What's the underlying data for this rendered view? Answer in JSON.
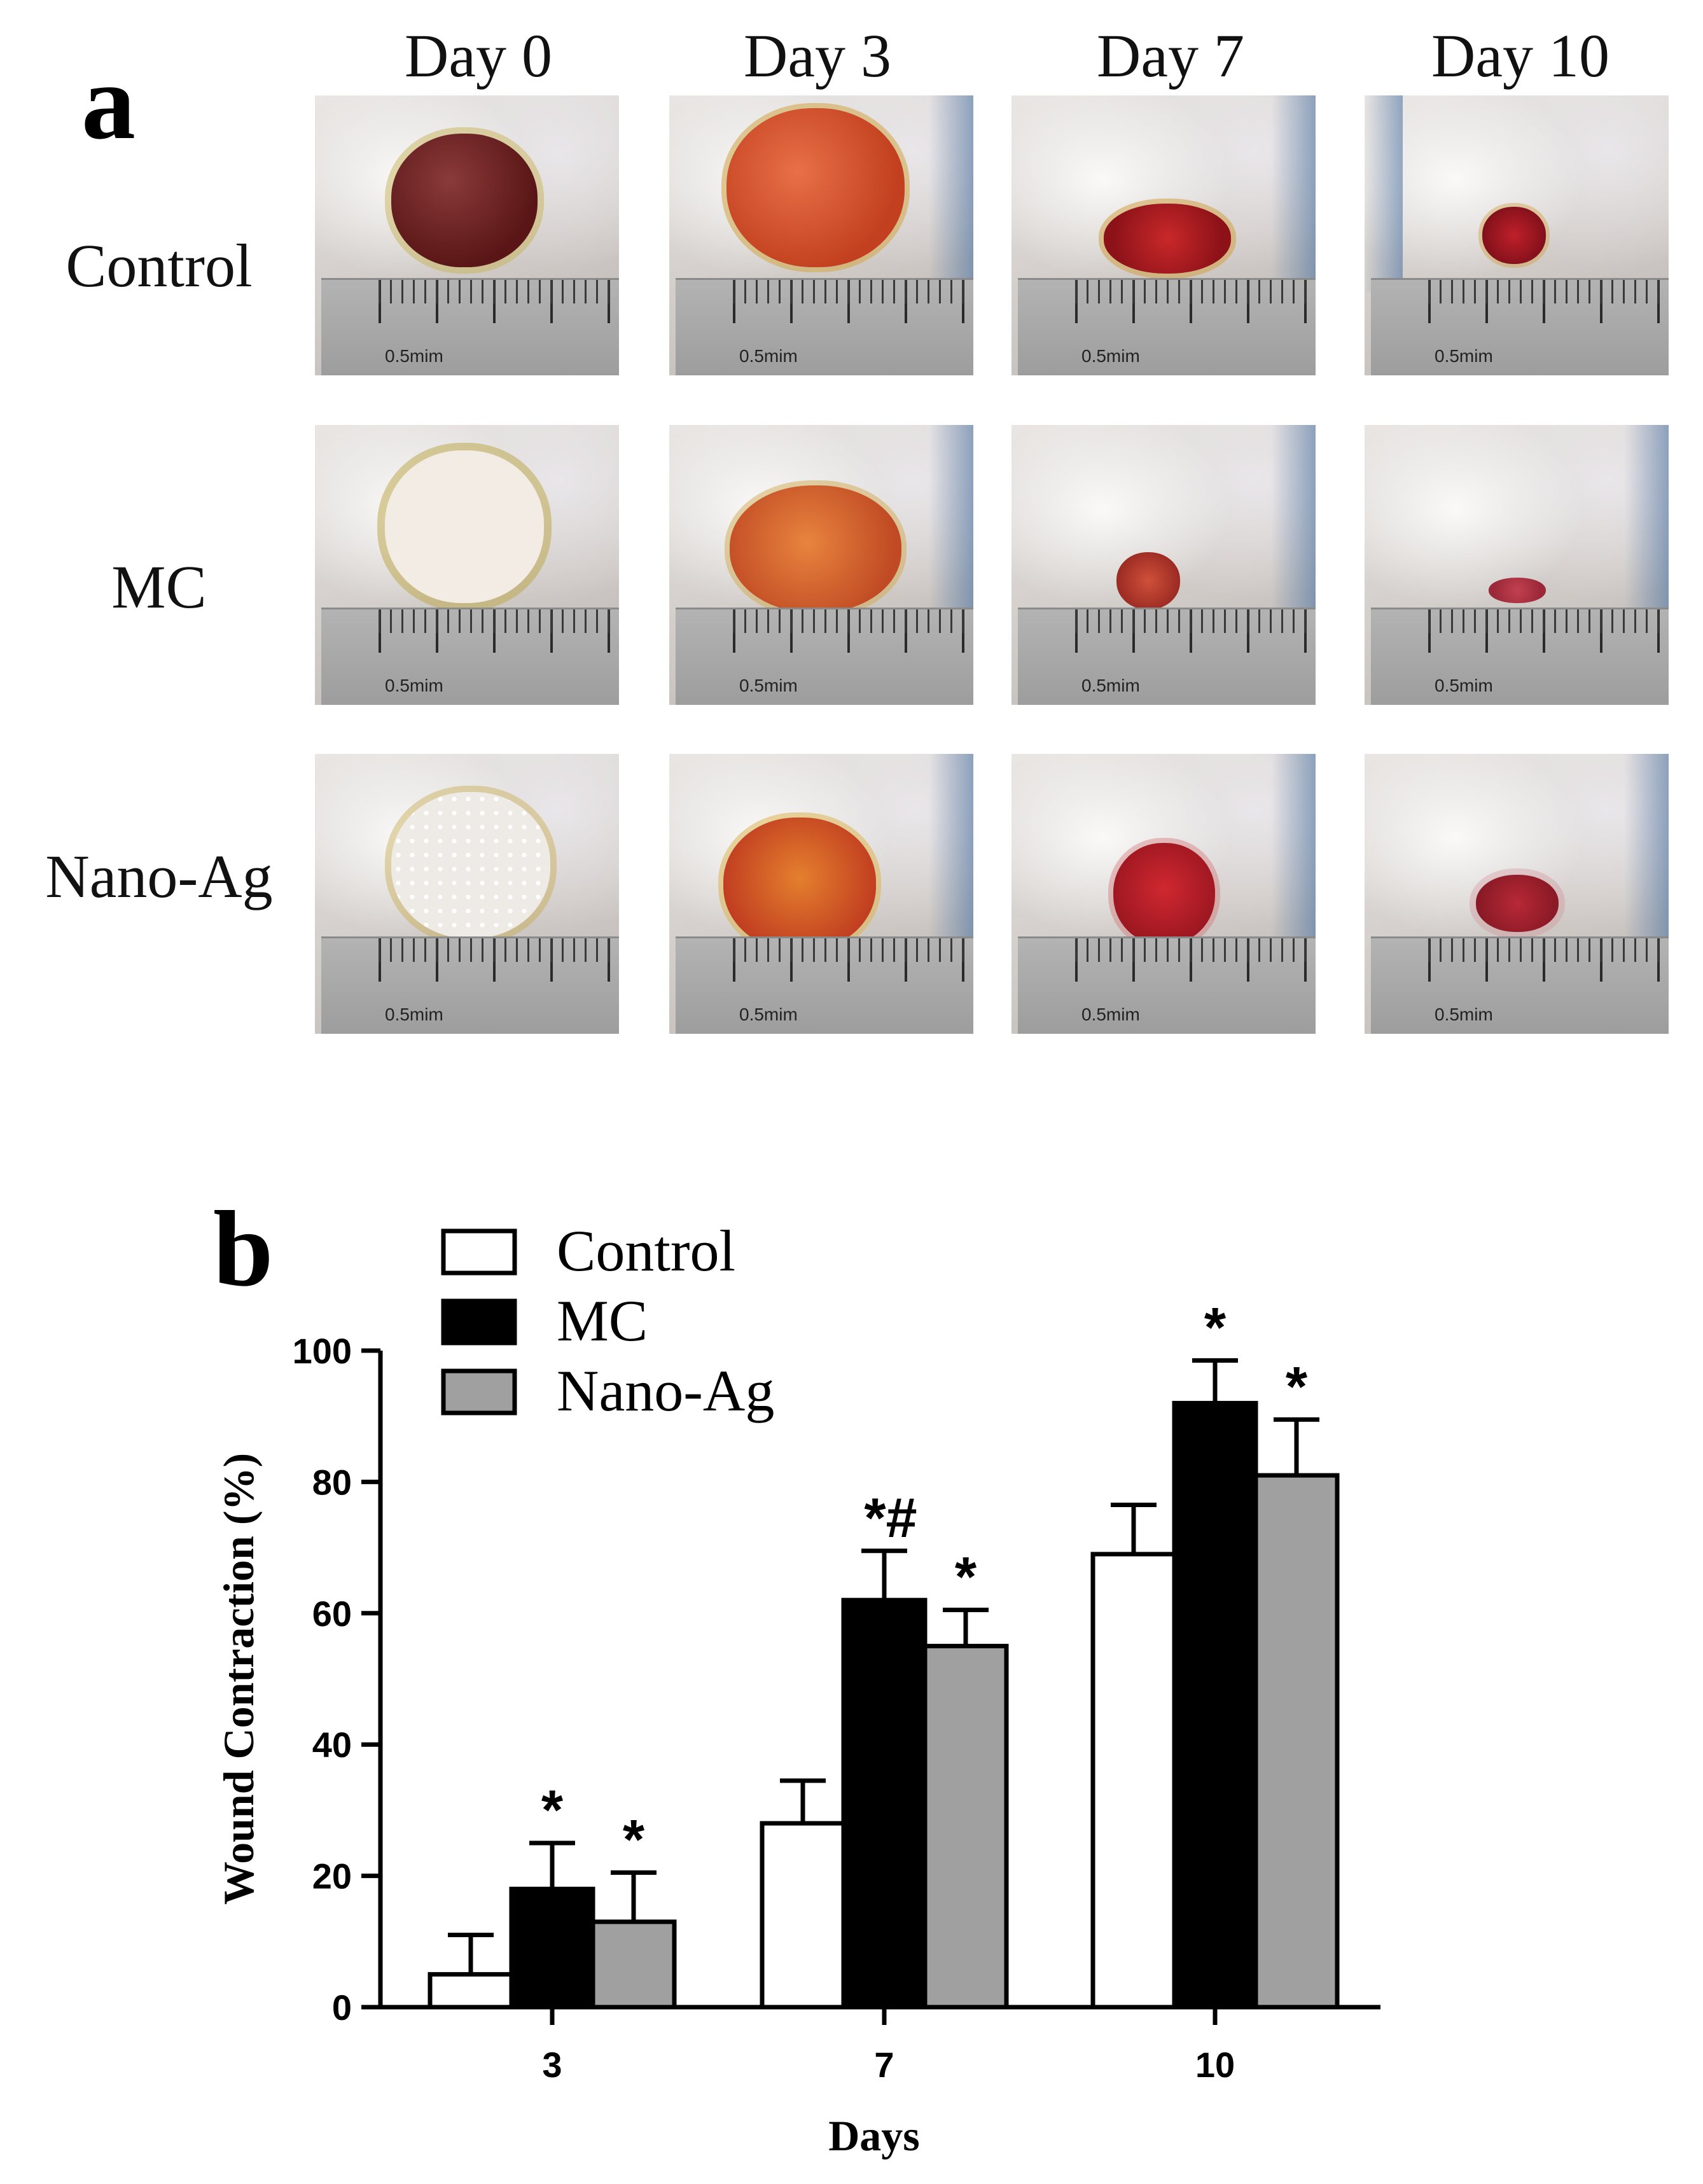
{
  "panel_a": {
    "letter": "a",
    "days": [
      "Day 0",
      "Day 3",
      "Day 7",
      "Day 10"
    ],
    "groups": [
      "Control",
      "MC",
      "Nano-Ag"
    ],
    "scale_label": "0.5mim",
    "description_colors": {
      "wound_dark": "#6e1f1f",
      "wound_red": "#b8242a",
      "wound_orange": "#d9602e",
      "dressing": "#f3ede6"
    }
  },
  "chart_data": {
    "type": "bar",
    "panel_letter": "b",
    "title": "",
    "xlabel": "Days",
    "ylabel": "Wound Contraction (%)",
    "categories": [
      "3",
      "7",
      "10"
    ],
    "ylim": [
      0,
      100
    ],
    "yticks": [
      "0",
      "20",
      "40",
      "60",
      "80",
      "100"
    ],
    "legend_position": "top-left",
    "series": [
      {
        "name": "Control",
        "color": "#ffffff",
        "values": [
          5,
          28,
          69
        ],
        "errors": [
          6,
          6.5,
          7.5
        ],
        "annotations": [
          "",
          "",
          ""
        ]
      },
      {
        "name": "MC",
        "color": "#000000",
        "values": [
          18,
          62,
          92
        ],
        "errors": [
          7,
          7.5,
          6.5
        ],
        "annotations": [
          "*",
          "*#",
          "*"
        ]
      },
      {
        "name": "Nano-Ag",
        "color": "#a0a0a0",
        "values": [
          13,
          55,
          81
        ],
        "errors": [
          7.5,
          5.5,
          8.5
        ],
        "annotations": [
          "*",
          "*",
          "*"
        ]
      }
    ]
  }
}
